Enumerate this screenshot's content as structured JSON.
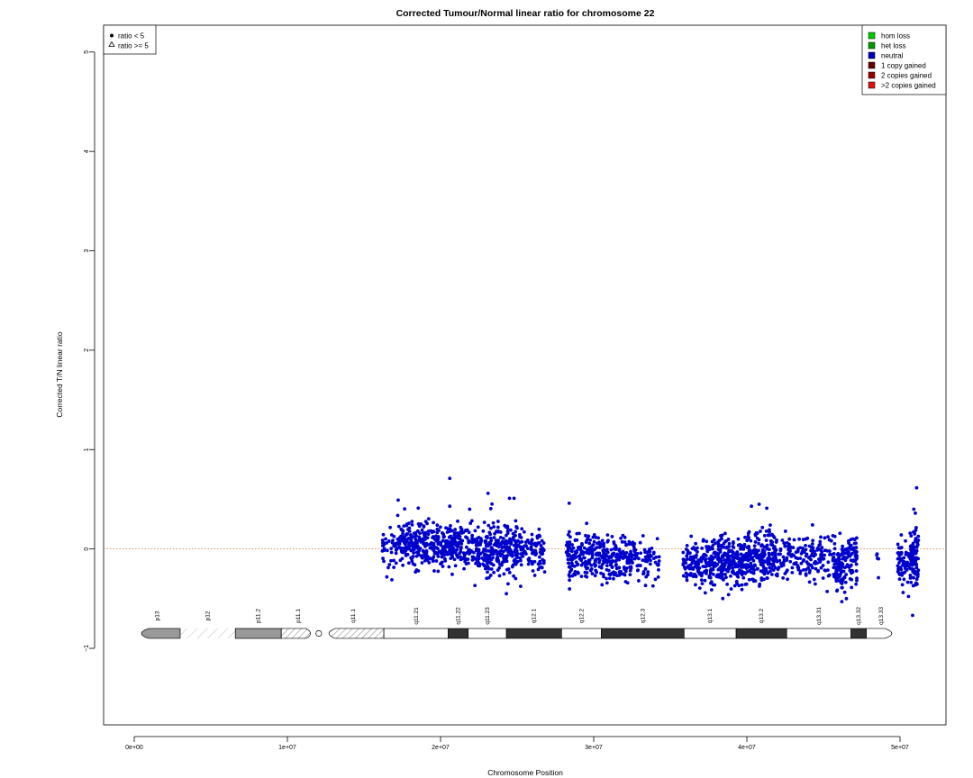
{
  "chart_data": {
    "type": "scatter",
    "title": "Corrected Tumour/Normal linear ratio for chromosome  22",
    "xlabel": "Chromosome Position",
    "ylabel": "Corrected T/N linear ratio",
    "xlim": [
      -2000000,
      53000000
    ],
    "ylim": [
      -1.77,
      5.27
    ],
    "x_ticks": [
      0,
      10000000,
      20000000,
      30000000,
      40000000,
      50000000
    ],
    "x_tick_labels": [
      "0e+00",
      "1e+07",
      "2e+07",
      "3e+07",
      "4e+07",
      "5e+07"
    ],
    "y_ticks": [
      -1,
      0,
      1,
      2,
      3,
      4,
      5
    ],
    "y_tick_labels": [
      "−1",
      "0",
      "1",
      "2",
      "3",
      "4",
      "5"
    ],
    "reference_line_y": 0,
    "point_color": "#0000cc",
    "reference_line_color": "#cc7722",
    "marker_legend": [
      {
        "symbol": "filled-circle",
        "label": "ratio < 5"
      },
      {
        "symbol": "open-triangle",
        "label": "ratio >= 5"
      }
    ],
    "color_legend": [
      {
        "label": "hom loss",
        "color": "#00cc00"
      },
      {
        "label": "het loss",
        "color": "#009900"
      },
      {
        "label": "neutral",
        "color": "#0000bb"
      },
      {
        "label": "1 copy gained",
        "color": "#660000"
      },
      {
        "label": "2 copies gained",
        "color": "#990000"
      },
      {
        "label": ">2 copies gained",
        "color": "#dd1111"
      }
    ],
    "ideogram": {
      "y": -0.85,
      "bands": [
        {
          "name": "p13",
          "start": 0,
          "end": 3000000,
          "stain": "gpos50"
        },
        {
          "name": "p12",
          "start": 3000000,
          "end": 6600000,
          "stain": "stalk"
        },
        {
          "name": "p11.2",
          "start": 6600000,
          "end": 9600000,
          "stain": "gpos50"
        },
        {
          "name": "p11.1",
          "start": 9600000,
          "end": 11800000,
          "stain": "acen"
        },
        {
          "name": "",
          "start": 11800000,
          "end": 12300000,
          "stain": "centromere"
        },
        {
          "name": "q11.1",
          "start": 12300000,
          "end": 16300000,
          "stain": "gvar"
        },
        {
          "name": "q11.21",
          "start": 16300000,
          "end": 20500000,
          "stain": "gneg"
        },
        {
          "name": "q11.22",
          "start": 20500000,
          "end": 21800000,
          "stain": "gpos100"
        },
        {
          "name": "q11.23",
          "start": 21800000,
          "end": 24300000,
          "stain": "gneg"
        },
        {
          "name": "q12.1",
          "start": 24300000,
          "end": 27900000,
          "stain": "gpos100"
        },
        {
          "name": "q12.2",
          "start": 27900000,
          "end": 30500000,
          "stain": "gneg"
        },
        {
          "name": "q12.3",
          "start": 30500000,
          "end": 35900000,
          "stain": "gpos100"
        },
        {
          "name": "q13.1",
          "start": 35900000,
          "end": 39300000,
          "stain": "gneg"
        },
        {
          "name": "q13.2",
          "start": 39300000,
          "end": 42600000,
          "stain": "gpos100"
        },
        {
          "name": "q13.31",
          "start": 42600000,
          "end": 46800000,
          "stain": "gneg"
        },
        {
          "name": "q13.32",
          "start": 46800000,
          "end": 47800000,
          "stain": "gpos100"
        },
        {
          "name": "q13.33",
          "start": 47800000,
          "end": 49700000,
          "stain": "gneg"
        }
      ]
    },
    "point_clusters": [
      {
        "x_start": 16200000,
        "x_end": 17200000,
        "mean": 0.02,
        "sd": 0.12,
        "n": 40
      },
      {
        "x_start": 17200000,
        "x_end": 19600000,
        "mean": 0.06,
        "sd": 0.12,
        "n": 200
      },
      {
        "x_start": 19600000,
        "x_end": 21300000,
        "mean": 0.05,
        "sd": 0.12,
        "n": 150
      },
      {
        "x_start": 21300000,
        "x_end": 22800000,
        "mean": 0.03,
        "sd": 0.12,
        "n": 100
      },
      {
        "x_start": 22800000,
        "x_end": 25000000,
        "mean": -0.02,
        "sd": 0.13,
        "n": 220
      },
      {
        "x_start": 25000000,
        "x_end": 25800000,
        "mean": 0.0,
        "sd": 0.11,
        "n": 40
      },
      {
        "x_start": 25800000,
        "x_end": 26800000,
        "mean": -0.03,
        "sd": 0.12,
        "n": 60
      },
      {
        "x_start": 28200000,
        "x_end": 30500000,
        "mean": -0.07,
        "sd": 0.11,
        "n": 170
      },
      {
        "x_start": 30500000,
        "x_end": 32400000,
        "mean": -0.11,
        "sd": 0.11,
        "n": 140
      },
      {
        "x_start": 32400000,
        "x_end": 34300000,
        "mean": -0.12,
        "sd": 0.1,
        "n": 80
      },
      {
        "x_start": 35800000,
        "x_end": 37800000,
        "mean": -0.15,
        "sd": 0.11,
        "n": 150
      },
      {
        "x_start": 37800000,
        "x_end": 40000000,
        "mean": -0.12,
        "sd": 0.12,
        "n": 230
      },
      {
        "x_start": 40000000,
        "x_end": 42000000,
        "mean": -0.09,
        "sd": 0.13,
        "n": 200
      },
      {
        "x_start": 42000000,
        "x_end": 44500000,
        "mean": -0.1,
        "sd": 0.11,
        "n": 120
      },
      {
        "x_start": 44500000,
        "x_end": 45800000,
        "mean": -0.08,
        "sd": 0.11,
        "n": 60
      },
      {
        "x_start": 45800000,
        "x_end": 46500000,
        "mean": -0.2,
        "sd": 0.14,
        "n": 80
      },
      {
        "x_start": 46500000,
        "x_end": 47200000,
        "mean": -0.1,
        "sd": 0.12,
        "n": 60
      },
      {
        "x_start": 48400000,
        "x_end": 48700000,
        "mean": -0.1,
        "sd": 0.08,
        "n": 5
      },
      {
        "x_start": 49800000,
        "x_end": 50600000,
        "mean": -0.14,
        "sd": 0.12,
        "n": 60
      },
      {
        "x_start": 50600000,
        "x_end": 51200000,
        "mean": -0.1,
        "sd": 0.14,
        "n": 100
      }
    ],
    "highlighted_points": [
      {
        "x": 20600000,
        "y": 0.71
      },
      {
        "x": 23100000,
        "y": 0.56
      },
      {
        "x": 24500000,
        "y": 0.51
      },
      {
        "x": 24800000,
        "y": 0.51
      },
      {
        "x": 28400000,
        "y": 0.46
      },
      {
        "x": 40800000,
        "y": 0.45
      },
      {
        "x": 40300000,
        "y": 0.43
      },
      {
        "x": 41300000,
        "y": 0.41
      },
      {
        "x": 20600000,
        "y": 0.43
      },
      {
        "x": 21900000,
        "y": 0.4
      },
      {
        "x": 50900000,
        "y": 0.4
      },
      {
        "x": 51000000,
        "y": 0.36
      },
      {
        "x": 24300000,
        "y": -0.45
      },
      {
        "x": 46200000,
        "y": -0.53
      },
      {
        "x": 46500000,
        "y": -0.5
      }
    ]
  }
}
